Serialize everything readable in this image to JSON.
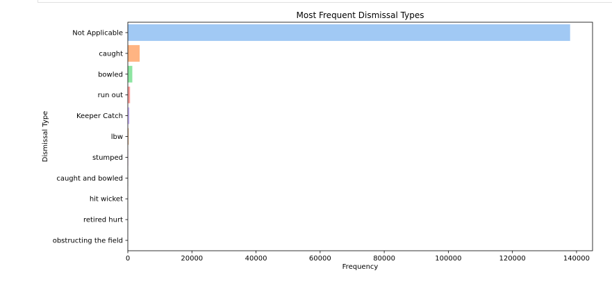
{
  "chart_data": {
    "type": "bar",
    "orientation": "horizontal",
    "title": "Most Frequent Dismissal Types",
    "xlabel": "Frequency",
    "ylabel": "Dismissal Type",
    "xlim": [
      0,
      145000
    ],
    "xticks": [
      0,
      20000,
      40000,
      60000,
      80000,
      100000,
      120000,
      140000
    ],
    "grid": false,
    "categories": [
      "Not Applicable",
      "caught",
      "bowled",
      "run out",
      "Keeper Catch",
      "lbw",
      "stumped",
      "caught and bowled",
      "hit wicket",
      "retired hurt",
      "obstructing the field"
    ],
    "values": [
      138000,
      3700,
      1400,
      700,
      500,
      300,
      120,
      100,
      10,
      10,
      2
    ],
    "colors": [
      "#a1c9f4",
      "#ffb482",
      "#8de5a1",
      "#ff9f9b",
      "#d0bbff",
      "#debb9b",
      "#fab0e4",
      "#cfcfcf",
      "#fffea3",
      "#b9f2f0",
      "#a1c9f4"
    ]
  }
}
